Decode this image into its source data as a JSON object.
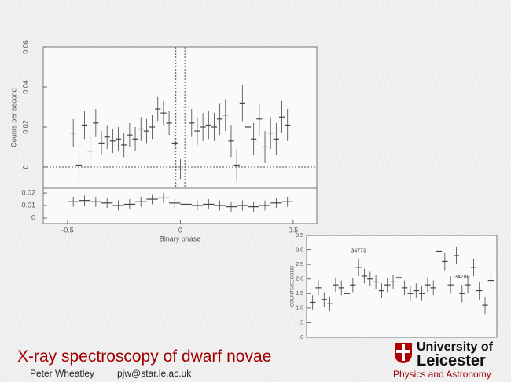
{
  "slide": {
    "title": "X-ray spectroscopy of dwarf novae",
    "author": "Peter Wheatley",
    "email": "pjw@star.le.ac.uk",
    "logo_line1": "University of",
    "logo_line2": "Leicester",
    "department": "Physics and Astronomy"
  },
  "chart_data": [
    {
      "type": "step",
      "y_label": "Counts per second",
      "x": [
        -0.475,
        -0.45,
        -0.425,
        -0.4,
        -0.375,
        -0.35,
        -0.325,
        -0.3,
        -0.275,
        -0.25,
        -0.225,
        -0.2,
        -0.175,
        -0.15,
        -0.125,
        -0.1,
        -0.075,
        -0.05,
        -0.025,
        0,
        0.025,
        0.05,
        0.075,
        0.1,
        0.125,
        0.15,
        0.175,
        0.2,
        0.225,
        0.25,
        0.275,
        0.3,
        0.325,
        0.35,
        0.375,
        0.4,
        0.425,
        0.45,
        0.475
      ],
      "values": [
        0.017,
        0.001,
        0.021,
        0.008,
        0.022,
        0.012,
        0.015,
        0.013,
        0.014,
        0.011,
        0.016,
        0.014,
        0.019,
        0.018,
        0.02,
        0.029,
        0.027,
        0.022,
        0.012,
        -0.001,
        0.03,
        0.022,
        0.018,
        0.02,
        0.021,
        0.02,
        0.024,
        0.026,
        0.013,
        0.001,
        0.032,
        0.02,
        0.014,
        0.024,
        0.01,
        0.017,
        0.014,
        0.025,
        0.021
      ],
      "errors": [
        0.007,
        0.007,
        0.007,
        0.007,
        0.007,
        0.006,
        0.006,
        0.006,
        0.006,
        0.006,
        0.006,
        0.006,
        0.006,
        0.006,
        0.006,
        0.006,
        0.006,
        0.006,
        0.006,
        0.005,
        0.007,
        0.007,
        0.007,
        0.007,
        0.007,
        0.007,
        0.008,
        0.008,
        0.008,
        0.008,
        0.009,
        0.008,
        0.008,
        0.008,
        0.008,
        0.008,
        0.008,
        0.008,
        0.008
      ],
      "color": "#444",
      "xlim": [
        -0.608,
        0.605
      ],
      "ylim": [
        -0.0106,
        0.06
      ],
      "yticks": [
        0,
        0.02,
        0.04,
        0.06
      ],
      "hlines": [
        0
      ],
      "vlines": [
        -0.02,
        0.02
      ]
    },
    {
      "type": "step",
      "x_label": "Binary phase",
      "x": [
        -0.475,
        -0.425,
        -0.375,
        -0.325,
        -0.275,
        -0.225,
        -0.175,
        -0.125,
        -0.075,
        -0.025,
        0.025,
        0.075,
        0.125,
        0.175,
        0.225,
        0.275,
        0.325,
        0.375,
        0.425,
        0.475
      ],
      "values": [
        0.013,
        0.014,
        0.013,
        0.012,
        0.01,
        0.011,
        0.013,
        0.015,
        0.016,
        0.012,
        0.011,
        0.01,
        0.011,
        0.01,
        0.009,
        0.01,
        0.009,
        0.01,
        0.012,
        0.013
      ],
      "errors": [
        0.004,
        0.004,
        0.004,
        0.004,
        0.004,
        0.004,
        0.004,
        0.004,
        0.004,
        0.004,
        0.004,
        0.004,
        0.004,
        0.004,
        0.004,
        0.004,
        0.004,
        0.004,
        0.004,
        0.004
      ],
      "color": "#444",
      "xlim": [
        -0.608,
        0.605
      ],
      "ylim": [
        -0.0044,
        0.0238
      ],
      "yticks": [
        0,
        0.01,
        0.02
      ],
      "xticks": [
        -0.5,
        0,
        0.5
      ]
    },
    {
      "type": "step",
      "y_label": "COUNTS/SECOND",
      "annotations": [
        "34779",
        "34780"
      ],
      "categories": [
        null,
        null,
        null,
        null,
        null,
        null,
        null,
        null,
        null,
        null,
        null,
        null,
        null,
        null,
        null,
        null,
        null,
        null,
        null,
        null,
        null,
        null,
        null,
        null,
        null,
        null,
        null,
        null,
        null,
        null,
        null,
        null
      ],
      "values": [
        1.2,
        1.7,
        1.3,
        1.15,
        1.8,
        1.7,
        1.5,
        1.8,
        2.4,
        2.1,
        2.0,
        1.9,
        1.6,
        1.8,
        1.9,
        2.05,
        1.7,
        1.5,
        1.6,
        1.5,
        1.8,
        1.7,
        2.95,
        2.6,
        1.8,
        2.8,
        1.5,
        1.8,
        2.4,
        1.6,
        1.1,
        1.95
      ],
      "errors": [
        0.25,
        0.25,
        0.25,
        0.25,
        0.25,
        0.25,
        0.25,
        0.25,
        0.3,
        0.25,
        0.25,
        0.25,
        0.25,
        0.25,
        0.25,
        0.25,
        0.25,
        0.25,
        0.25,
        0.25,
        0.25,
        0.25,
        0.4,
        0.3,
        0.3,
        0.3,
        0.3,
        0.3,
        0.3,
        0.3,
        0.3,
        0.3
      ],
      "color": "#444",
      "ylim": [
        0,
        3.5
      ],
      "yticks": [
        {
          "value": 0,
          "label": ".0"
        },
        {
          "value": 0.5,
          "label": ".5"
        },
        {
          "value": 1,
          "label": "1.0"
        },
        {
          "value": 1.5,
          "label": "1.5"
        },
        {
          "value": 2,
          "label": "2.0"
        },
        {
          "value": 2.5,
          "label": "2.5"
        },
        {
          "value": 3,
          "label": "3.0"
        },
        {
          "value": 3.5,
          "label": "3.5"
        }
      ]
    }
  ]
}
